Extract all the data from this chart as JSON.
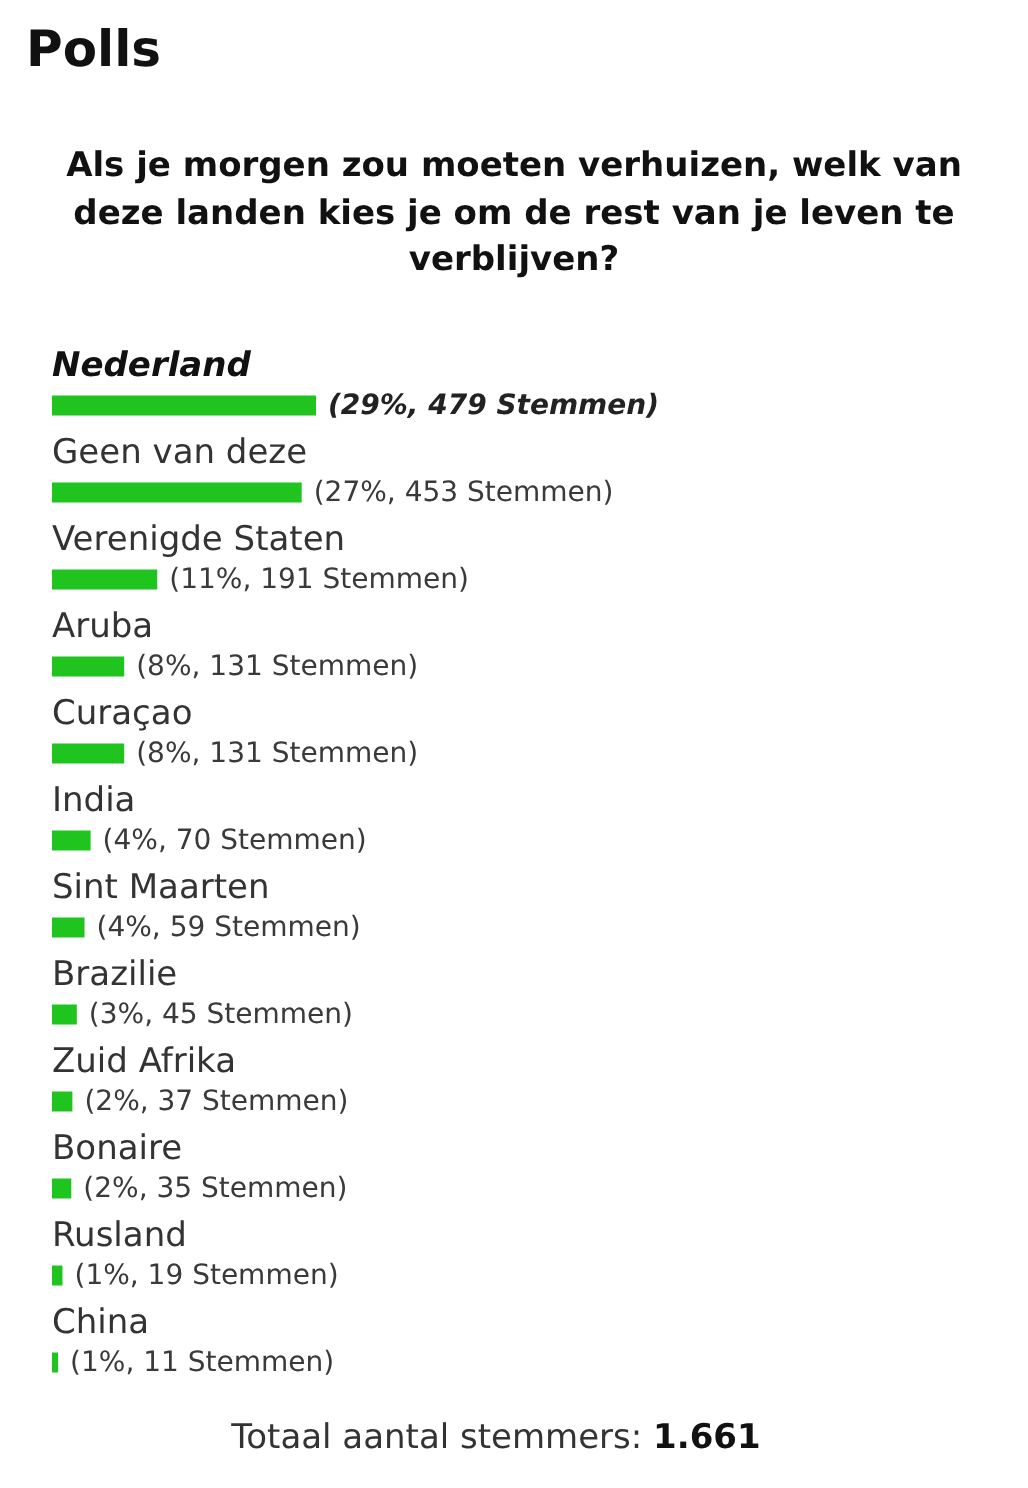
{
  "chart_data": {
    "type": "bar",
    "orientation": "horizontal",
    "title": "Polls",
    "subtitle": "Als je morgen zou moeten verhuizen, welk van deze landen kies je om de rest van je leven te verblijven?",
    "categories": [
      "Nederland",
      "Geen van deze",
      "Verenigde Staten",
      "Aruba",
      "Curaçao",
      "India",
      "Sint Maarten",
      "Brazilie",
      "Zuid Afrika",
      "Bonaire",
      "Rusland",
      "China"
    ],
    "values": [
      479,
      453,
      191,
      131,
      131,
      70,
      59,
      45,
      37,
      35,
      19,
      11
    ],
    "value_labels": [
      "(29%, 479 Stemmen)",
      "(27%, 453 Stemmen)",
      "(11%, 191 Stemmen)",
      "(8%, 131 Stemmen)",
      "(8%, 131 Stemmen)",
      "(4%, 70 Stemmen)",
      "(4%, 59 Stemmen)",
      "(3%, 45 Stemmen)",
      "(2%, 37 Stemmen)",
      "(2%, 35 Stemmen)",
      "(1%, 19 Stemmen)",
      "(1%, 11 Stemmen)"
    ],
    "color": "#1fc41f",
    "annotations": [
      "Totaal aantal stemmers: 1.661"
    ]
  }
}
